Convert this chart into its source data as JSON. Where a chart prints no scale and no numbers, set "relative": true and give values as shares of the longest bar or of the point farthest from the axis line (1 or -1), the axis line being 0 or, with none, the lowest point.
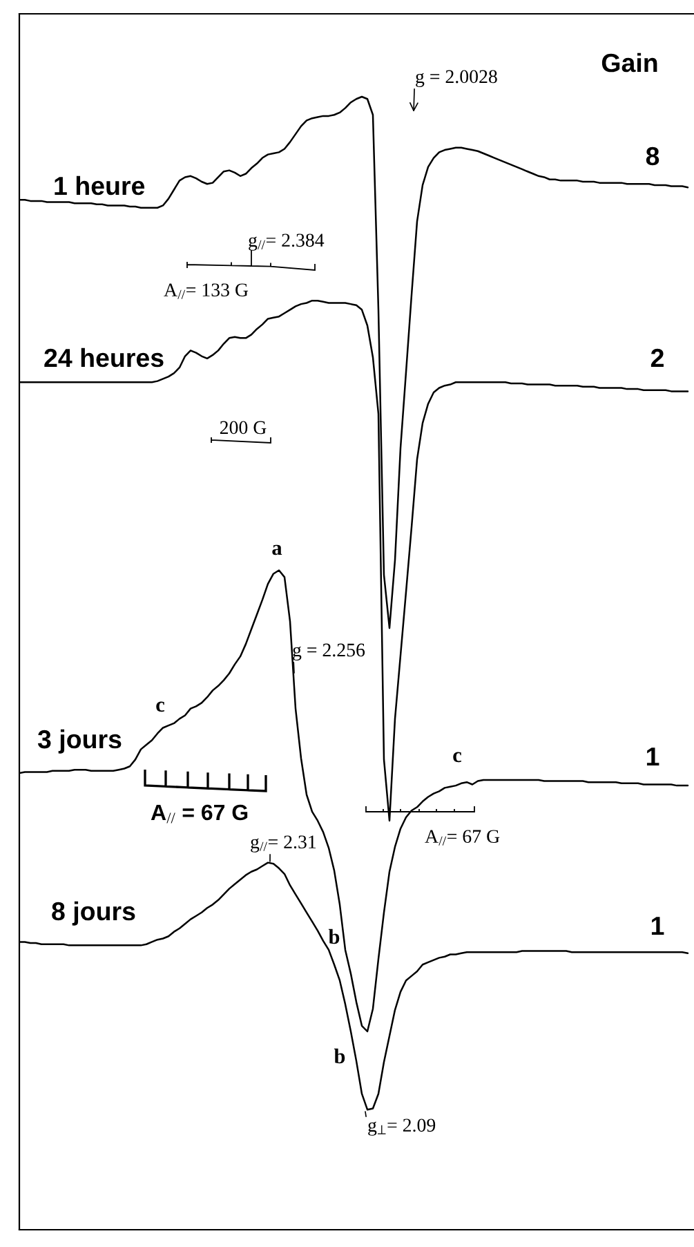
{
  "chart_data": {
    "type": "line",
    "relative": true,
    "categories": [
      null,
      null,
      null,
      null,
      null,
      null,
      null,
      null,
      null,
      null,
      null,
      null,
      null,
      null,
      null,
      null,
      null,
      null,
      null,
      null,
      null,
      null,
      null,
      null,
      null,
      null,
      null,
      null,
      null,
      null,
      null,
      null,
      null,
      null,
      null,
      null,
      null,
      null,
      null,
      null,
      null,
      null,
      null,
      null,
      null,
      null,
      null,
      null,
      null,
      null,
      null,
      null,
      null,
      null,
      null,
      null,
      null,
      null,
      null,
      null,
      null,
      null,
      null,
      null,
      null,
      null,
      null,
      null,
      null,
      null,
      null,
      null,
      null,
      null,
      null,
      null,
      null,
      null,
      null,
      null,
      null,
      null,
      null,
      null,
      null,
      null,
      null,
      null,
      null,
      null,
      null,
      null,
      null,
      null,
      null,
      null,
      null,
      null,
      null,
      null,
      null,
      null,
      null,
      null,
      null,
      null,
      null,
      null,
      null,
      null,
      null,
      null,
      null,
      null,
      null,
      null,
      null,
      null,
      null,
      null,
      null,
      null
    ],
    "series": [
      {
        "name": "1 heure",
        "color": "#000000",
        "values": [
          0.909,
          0.909,
          0.908,
          0.908,
          0.908,
          0.907,
          0.907,
          0.907,
          0.907,
          0.907,
          0.906,
          0.906,
          0.906,
          0.906,
          0.905,
          0.905,
          0.904,
          0.904,
          0.904,
          0.904,
          0.903,
          0.903,
          0.902,
          0.902,
          0.902,
          0.902,
          0.904,
          0.91,
          0.918,
          0.926,
          0.929,
          0.93,
          0.928,
          0.925,
          0.923,
          0.924,
          0.929,
          0.934,
          0.935,
          0.933,
          0.93,
          0.932,
          0.937,
          0.941,
          0.946,
          0.949,
          0.95,
          0.951,
          0.954,
          0.96,
          0.967,
          0.974,
          0.979,
          0.981,
          0.982,
          0.983,
          0.983,
          0.984,
          0.986,
          0.99,
          0.995,
          0.998,
          1.0,
          0.998,
          0.984,
          0.812,
          0.578,
          0.531,
          0.591,
          0.69,
          0.757,
          0.825,
          0.89,
          0.922,
          0.938,
          0.946,
          0.951,
          0.953,
          0.954,
          0.955,
          0.955,
          0.954,
          0.953,
          0.952,
          0.95,
          0.948,
          0.946,
          0.944,
          0.942,
          0.94,
          0.938,
          0.936,
          0.934,
          0.932,
          0.93,
          0.929,
          0.927,
          0.927,
          0.926,
          0.926,
          0.926,
          0.926,
          0.925,
          0.925,
          0.925,
          0.924,
          0.924,
          0.924,
          0.924,
          0.924,
          0.923,
          0.923,
          0.923,
          0.923,
          0.923,
          0.922,
          0.922,
          0.922,
          0.921,
          0.921,
          0.921,
          0.92
        ]
      },
      {
        "name": "24 heures",
        "color": "#000000",
        "values": [
          0.748,
          0.748,
          0.748,
          0.748,
          0.748,
          0.748,
          0.748,
          0.748,
          0.748,
          0.748,
          0.748,
          0.748,
          0.748,
          0.748,
          0.748,
          0.748,
          0.748,
          0.748,
          0.748,
          0.748,
          0.748,
          0.748,
          0.748,
          0.748,
          0.748,
          0.749,
          0.751,
          0.753,
          0.756,
          0.761,
          0.771,
          0.776,
          0.774,
          0.771,
          0.769,
          0.772,
          0.776,
          0.782,
          0.787,
          0.788,
          0.787,
          0.787,
          0.79,
          0.795,
          0.799,
          0.804,
          0.805,
          0.806,
          0.809,
          0.812,
          0.815,
          0.817,
          0.818,
          0.82,
          0.82,
          0.819,
          0.818,
          0.818,
          0.818,
          0.818,
          0.817,
          0.816,
          0.812,
          0.798,
          0.77,
          0.72,
          0.415,
          0.361,
          0.451,
          0.507,
          0.563,
          0.62,
          0.68,
          0.712,
          0.729,
          0.739,
          0.743,
          0.745,
          0.746,
          0.748,
          0.748,
          0.748,
          0.748,
          0.748,
          0.748,
          0.748,
          0.748,
          0.748,
          0.748,
          0.747,
          0.747,
          0.747,
          0.746,
          0.746,
          0.746,
          0.746,
          0.746,
          0.745,
          0.745,
          0.745,
          0.745,
          0.745,
          0.744,
          0.744,
          0.744,
          0.743,
          0.743,
          0.743,
          0.743,
          0.743,
          0.742,
          0.742,
          0.742,
          0.741,
          0.741,
          0.741,
          0.741,
          0.741,
          0.74,
          0.74,
          0.74,
          0.74
        ]
      },
      {
        "name": "3 jours",
        "color": "#000000",
        "values": [
          0.403,
          0.404,
          0.404,
          0.404,
          0.404,
          0.404,
          0.405,
          0.405,
          0.405,
          0.405,
          0.406,
          0.406,
          0.406,
          0.405,
          0.405,
          0.405,
          0.405,
          0.405,
          0.406,
          0.407,
          0.409,
          0.415,
          0.424,
          0.428,
          0.432,
          0.438,
          0.443,
          0.445,
          0.447,
          0.451,
          0.454,
          0.46,
          0.462,
          0.465,
          0.47,
          0.476,
          0.48,
          0.485,
          0.491,
          0.499,
          0.506,
          0.517,
          0.53,
          0.543,
          0.556,
          0.57,
          0.579,
          0.582,
          0.576,
          0.537,
          0.46,
          0.416,
          0.384,
          0.369,
          0.361,
          0.351,
          0.337,
          0.317,
          0.287,
          0.247,
          0.226,
          0.201,
          0.18,
          0.175,
          0.195,
          0.239,
          0.28,
          0.316,
          0.338,
          0.354,
          0.364,
          0.37,
          0.373,
          0.378,
          0.382,
          0.385,
          0.387,
          0.39,
          0.391,
          0.392,
          0.394,
          0.395,
          0.393,
          0.396,
          0.397,
          0.397,
          0.397,
          0.397,
          0.397,
          0.397,
          0.397,
          0.397,
          0.397,
          0.397,
          0.397,
          0.396,
          0.396,
          0.396,
          0.396,
          0.396,
          0.396,
          0.396,
          0.396,
          0.395,
          0.395,
          0.395,
          0.395,
          0.395,
          0.395,
          0.394,
          0.394,
          0.394,
          0.394,
          0.393,
          0.393,
          0.393,
          0.393,
          0.393,
          0.393,
          0.392,
          0.392,
          0.392
        ]
      },
      {
        "name": "8 jours",
        "color": "#000000",
        "values": [
          0.254,
          0.254,
          0.253,
          0.253,
          0.252,
          0.252,
          0.252,
          0.252,
          0.252,
          0.251,
          0.251,
          0.251,
          0.251,
          0.251,
          0.251,
          0.251,
          0.251,
          0.251,
          0.251,
          0.251,
          0.251,
          0.251,
          0.251,
          0.252,
          0.254,
          0.256,
          0.257,
          0.259,
          0.263,
          0.266,
          0.27,
          0.274,
          0.277,
          0.28,
          0.284,
          0.287,
          0.291,
          0.296,
          0.301,
          0.305,
          0.309,
          0.313,
          0.316,
          0.318,
          0.321,
          0.324,
          0.323,
          0.319,
          0.314,
          0.304,
          0.296,
          0.288,
          0.28,
          0.272,
          0.264,
          0.255,
          0.247,
          0.234,
          0.22,
          0.199,
          0.175,
          0.149,
          0.12,
          0.106,
          0.107,
          0.12,
          0.148,
          0.171,
          0.194,
          0.21,
          0.22,
          0.224,
          0.228,
          0.234,
          0.236,
          0.238,
          0.24,
          0.241,
          0.243,
          0.243,
          0.244,
          0.245,
          0.245,
          0.245,
          0.245,
          0.245,
          0.245,
          0.245,
          0.245,
          0.245,
          0.245,
          0.246,
          0.246,
          0.246,
          0.246,
          0.246,
          0.246,
          0.246,
          0.246,
          0.246,
          0.245,
          0.245,
          0.245,
          0.245,
          0.245,
          0.245,
          0.245,
          0.245,
          0.245,
          0.245,
          0.245,
          0.245,
          0.245,
          0.245,
          0.245,
          0.245,
          0.245,
          0.245,
          0.245,
          0.245,
          0.245,
          0.244
        ]
      }
    ],
    "annotations": [
      "Gain",
      "8",
      "2",
      "1",
      "1",
      "g = 2.0028",
      "g$_{//}$= 2.384",
      "A$_{//}$= 133 G",
      "200 G",
      "a",
      "g = 2.256",
      "c",
      "A$_{//}$ = 67 G",
      "c",
      "A$_{//}$= 67 G",
      "g$_{//}$= 2.31",
      "b",
      "b",
      "g$_{⊥}$= 2.09"
    ]
  }
}
